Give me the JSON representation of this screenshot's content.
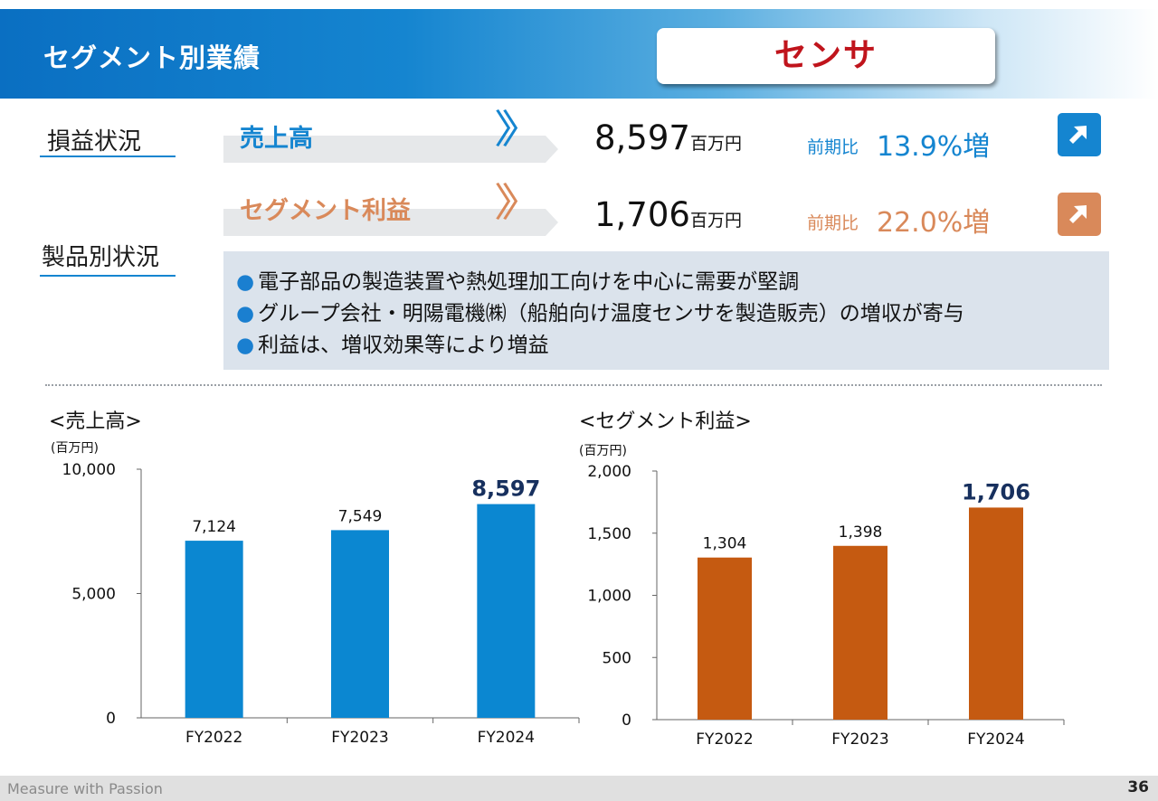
{
  "header": {
    "title": "セグメント別業績",
    "segment": "センサ"
  },
  "sections": {
    "performance": "損益状況",
    "products": "製品別状況"
  },
  "metrics": [
    {
      "label": "売上高",
      "value": "8,597",
      "unit": "百万円",
      "yoy_label": "前期比",
      "yoy_value": "13.9%増",
      "color": "#1585d0"
    },
    {
      "label": "セグメント利益",
      "value": "1,706",
      "unit": "百万円",
      "yoy_label": "前期比",
      "yoy_value": "22.0%増",
      "color": "#d9895a"
    }
  ],
  "comments": [
    "電子部品の製造装置や熱処理加工向けを中心に需要が堅調",
    "グループ会社・明陽電機㈱（船舶向け温度センサを製造販売）の増収が寄与",
    "利益は、増収効果等により増益"
  ],
  "chart_data": [
    {
      "type": "bar",
      "title": "<売上高>",
      "unit": "(百万円)",
      "categories": [
        "FY2022",
        "FY2023",
        "FY2024"
      ],
      "values": [
        7124,
        7549,
        8597
      ],
      "value_labels": [
        "7,124",
        "7,549",
        "8,597"
      ],
      "ylim": [
        0,
        10000
      ],
      "yticks": [
        0,
        5000,
        10000
      ],
      "ytick_labels": [
        "0",
        "5,000",
        "10,000"
      ],
      "color": "#0b87d1",
      "highlight_color": "#17305e"
    },
    {
      "type": "bar",
      "title": "<セグメント利益>",
      "unit": "(百万円)",
      "categories": [
        "FY2022",
        "FY2023",
        "FY2024"
      ],
      "values": [
        1304,
        1398,
        1706
      ],
      "value_labels": [
        "1,304",
        "1,398",
        "1,706"
      ],
      "ylim": [
        0,
        2000
      ],
      "yticks": [
        0,
        500,
        1000,
        1500,
        2000
      ],
      "ytick_labels": [
        "0",
        "500",
        "1,000",
        "1,500",
        "2,000"
      ],
      "color": "#c55a11",
      "highlight_color": "#17305e"
    }
  ],
  "footer": {
    "tagline": "Measure with Passion",
    "page": "36"
  }
}
